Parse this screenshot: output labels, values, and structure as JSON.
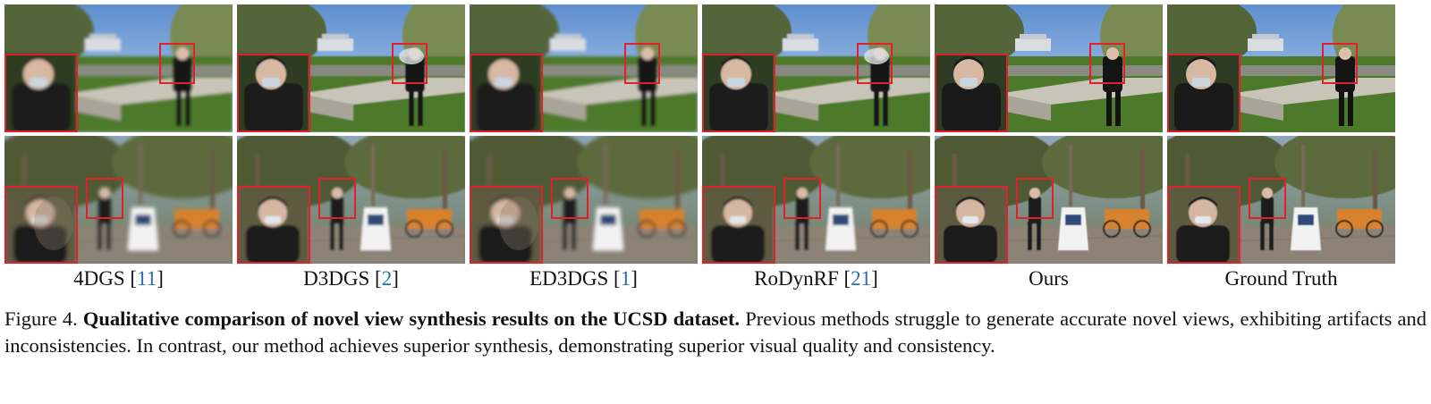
{
  "columns": [
    {
      "label": "4DGS",
      "ref": "11",
      "quality": "blurred"
    },
    {
      "label": "D3DGS",
      "ref": "2",
      "quality": "artifacts"
    },
    {
      "label": "ED3DGS",
      "ref": "1",
      "quality": "blurred"
    },
    {
      "label": "RoDynRF",
      "ref": "21",
      "quality": "artifacts"
    },
    {
      "label": "Ours",
      "ref": "",
      "quality": "sharp"
    },
    {
      "label": "Ground Truth",
      "ref": "",
      "quality": "sharp"
    }
  ],
  "caption": {
    "prefix": "Figure 4.",
    "title": "Qualitative comparison of novel view synthesis results on the UCSD dataset.",
    "body": "Previous methods struggle to generate accurate novel views, exhibiting artifacts and inconsistencies. In contrast, our method achieves superior synthesis, demonstrating superior visual quality and consistency."
  },
  "colors": {
    "highlight_box": "#e0202a",
    "citation": "#2a6db0"
  }
}
